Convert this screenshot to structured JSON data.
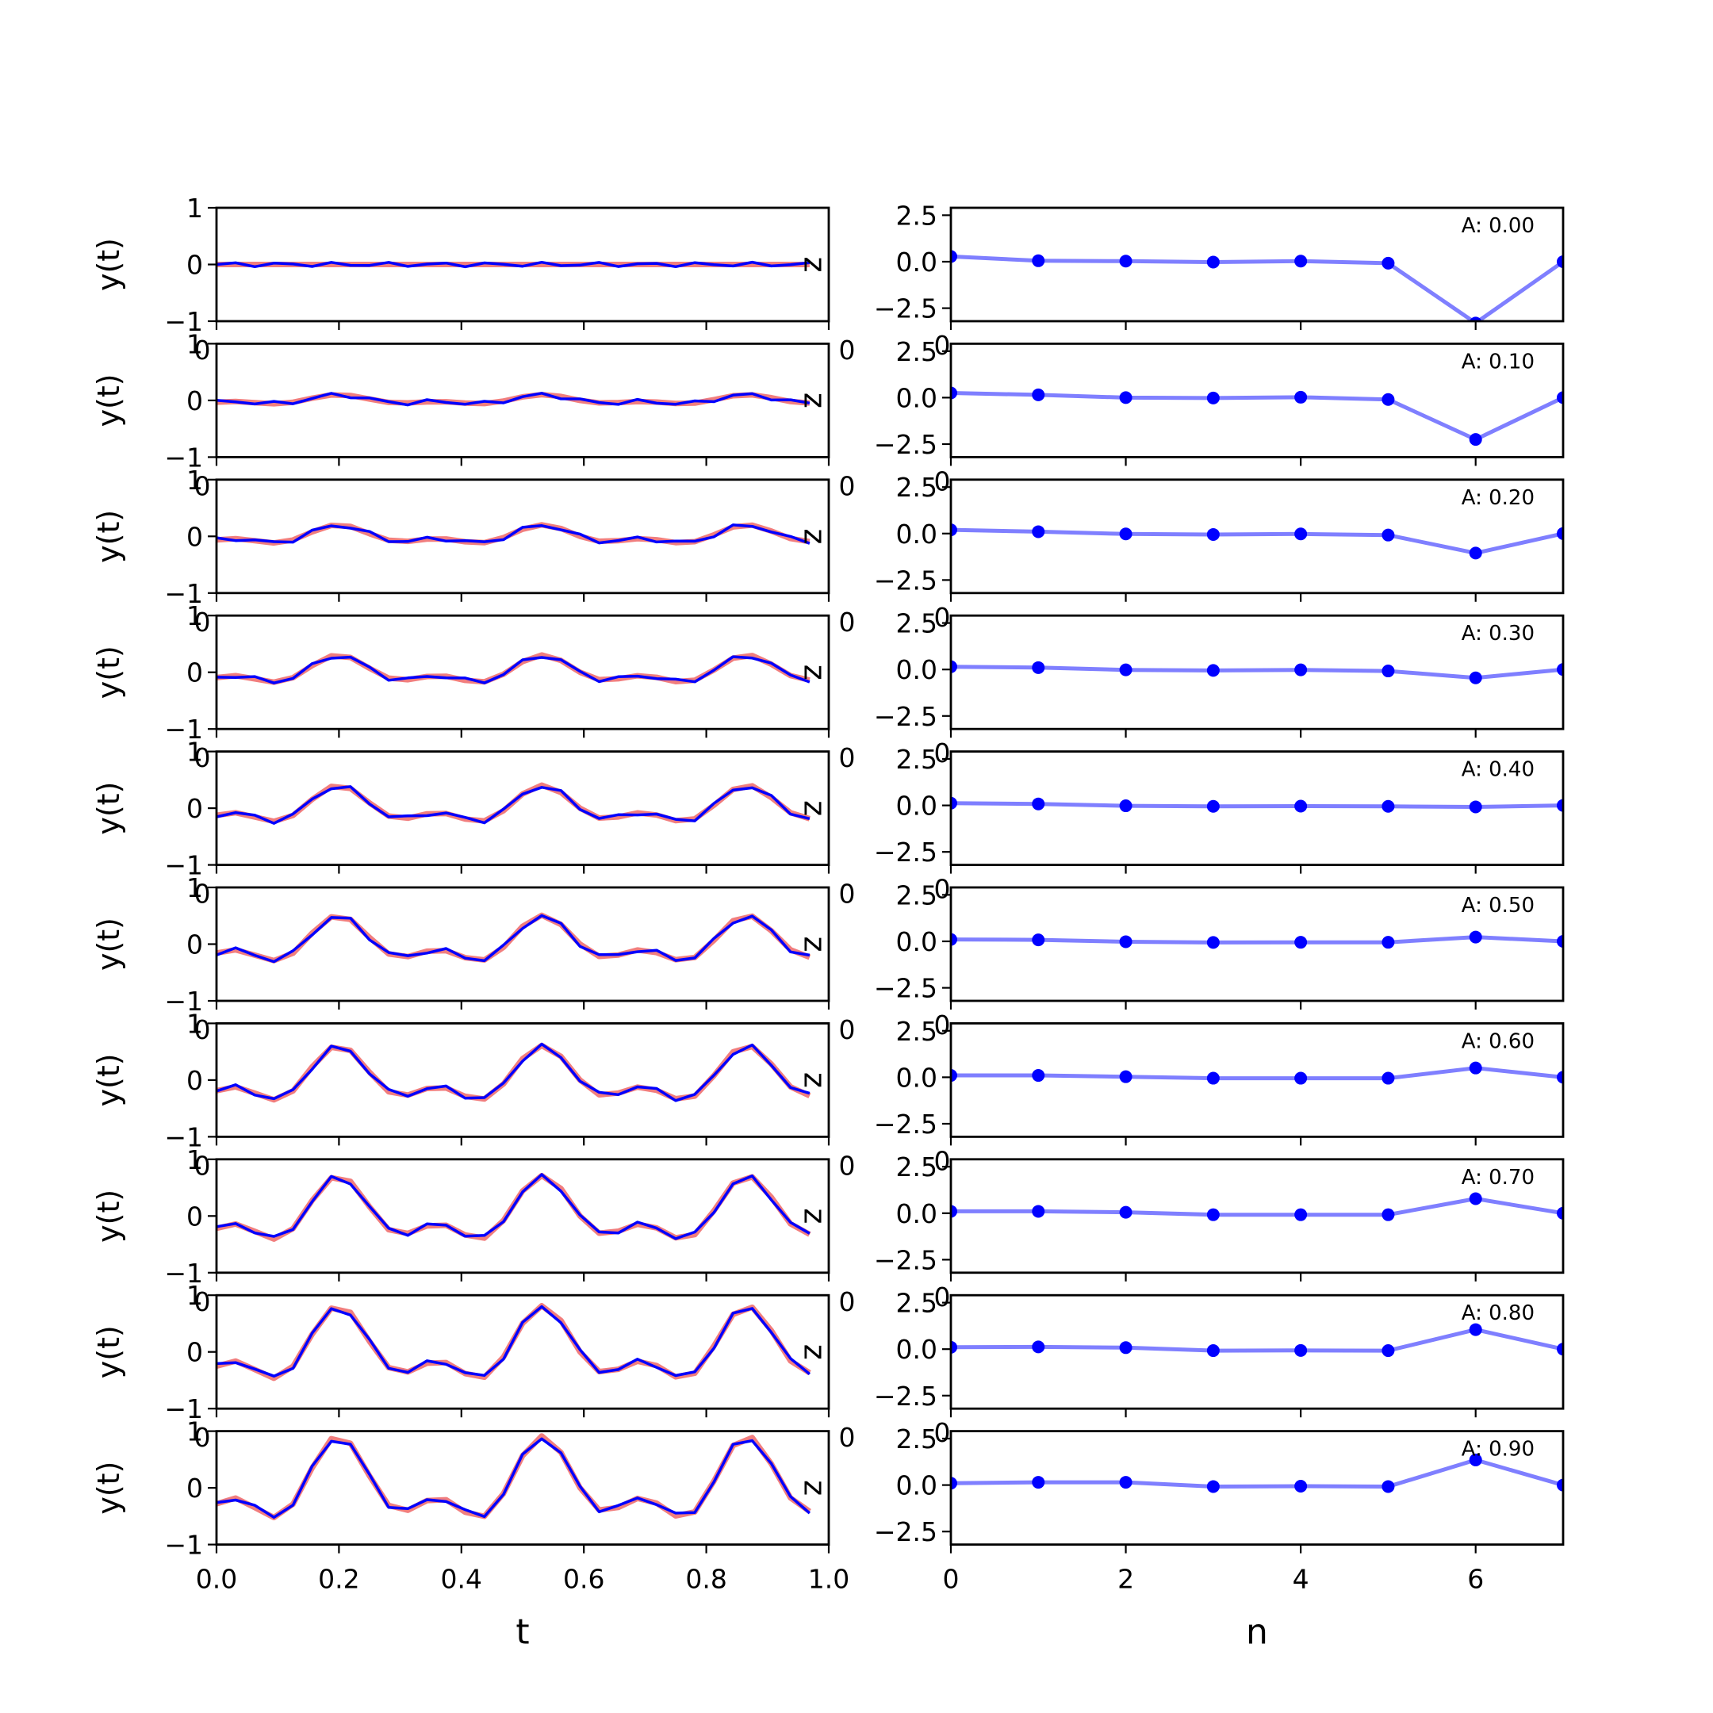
{
  "chart_data": {
    "type": "line",
    "layout": "10x2 grid of subplots",
    "left_column": {
      "xlabel": "t",
      "ylabel": "y(t)",
      "xlim": [
        0.0,
        1.0
      ],
      "ylim": [
        -1,
        1
      ],
      "xticks": [
        "0.0",
        "0.2",
        "0.4",
        "0.6",
        "0.8",
        "1.0"
      ],
      "yticks": [
        "1",
        "0",
        "−1"
      ],
      "stray_tick_label": "0",
      "edge_marker": "z",
      "t": [
        0.0,
        0.03125,
        0.0625,
        0.09375,
        0.125,
        0.15625,
        0.1875,
        0.21875,
        0.25,
        0.28125,
        0.3125,
        0.34375,
        0.375,
        0.40625,
        0.4375,
        0.46875,
        0.5,
        0.53125,
        0.5625,
        0.59375,
        0.625,
        0.65625,
        0.6875,
        0.71875,
        0.75,
        0.78125,
        0.8125,
        0.84375,
        0.875,
        0.90625,
        0.9375,
        0.96875
      ],
      "series_colors": {
        "reference": "#f07070",
        "signal": "#0000ff"
      }
    },
    "right_column": {
      "xlabel": "n",
      "xlim": [
        0,
        7
      ],
      "ylim": [
        -3.2,
        2.9
      ],
      "xticks": [
        "0",
        "2",
        "4",
        "6"
      ],
      "yticks": [
        "2.5",
        "0.0",
        "−2.5"
      ],
      "stray_tick_label": "0",
      "n": [
        0,
        1,
        2,
        3,
        4,
        5,
        6,
        7
      ],
      "line_color": "#0000ff",
      "line_alpha": 0.5
    },
    "panels": [
      {
        "A": 0.0,
        "annotation": "A: 0.00",
        "coeffs": [
          0.28,
          0.05,
          0.03,
          -0.02,
          0.03,
          -0.08,
          -3.3,
          0.0
        ]
      },
      {
        "A": 0.1,
        "annotation": "A: 0.10",
        "coeffs": [
          0.25,
          0.15,
          0.0,
          -0.02,
          0.02,
          -0.1,
          -2.25,
          0.0
        ]
      },
      {
        "A": 0.2,
        "annotation": "A: 0.20",
        "coeffs": [
          0.2,
          0.1,
          -0.02,
          -0.05,
          -0.02,
          -0.08,
          -1.05,
          0.0
        ]
      },
      {
        "A": 0.3,
        "annotation": "A: 0.30",
        "coeffs": [
          0.15,
          0.1,
          -0.02,
          -0.05,
          -0.02,
          -0.08,
          -0.45,
          0.0
        ]
      },
      {
        "A": 0.4,
        "annotation": "A: 0.40",
        "coeffs": [
          0.12,
          0.08,
          -0.02,
          -0.05,
          -0.04,
          -0.05,
          -0.08,
          0.0
        ]
      },
      {
        "A": 0.5,
        "annotation": "A: 0.50",
        "coeffs": [
          0.1,
          0.08,
          -0.02,
          -0.06,
          -0.05,
          -0.05,
          0.23,
          0.0
        ]
      },
      {
        "A": 0.6,
        "annotation": "A: 0.60",
        "coeffs": [
          0.1,
          0.1,
          0.03,
          -0.05,
          -0.05,
          -0.05,
          0.5,
          0.0
        ]
      },
      {
        "A": 0.7,
        "annotation": "A: 0.70",
        "coeffs": [
          0.1,
          0.1,
          0.05,
          -0.08,
          -0.08,
          -0.08,
          0.78,
          0.0
        ]
      },
      {
        "A": 0.8,
        "annotation": "A: 0.80",
        "coeffs": [
          0.1,
          0.12,
          0.08,
          -0.08,
          -0.07,
          -0.08,
          1.05,
          0.0
        ]
      },
      {
        "A": 0.9,
        "annotation": "A: 0.90",
        "coeffs": [
          0.1,
          0.15,
          0.15,
          -0.08,
          -0.06,
          -0.08,
          1.35,
          0.0
        ]
      }
    ]
  }
}
